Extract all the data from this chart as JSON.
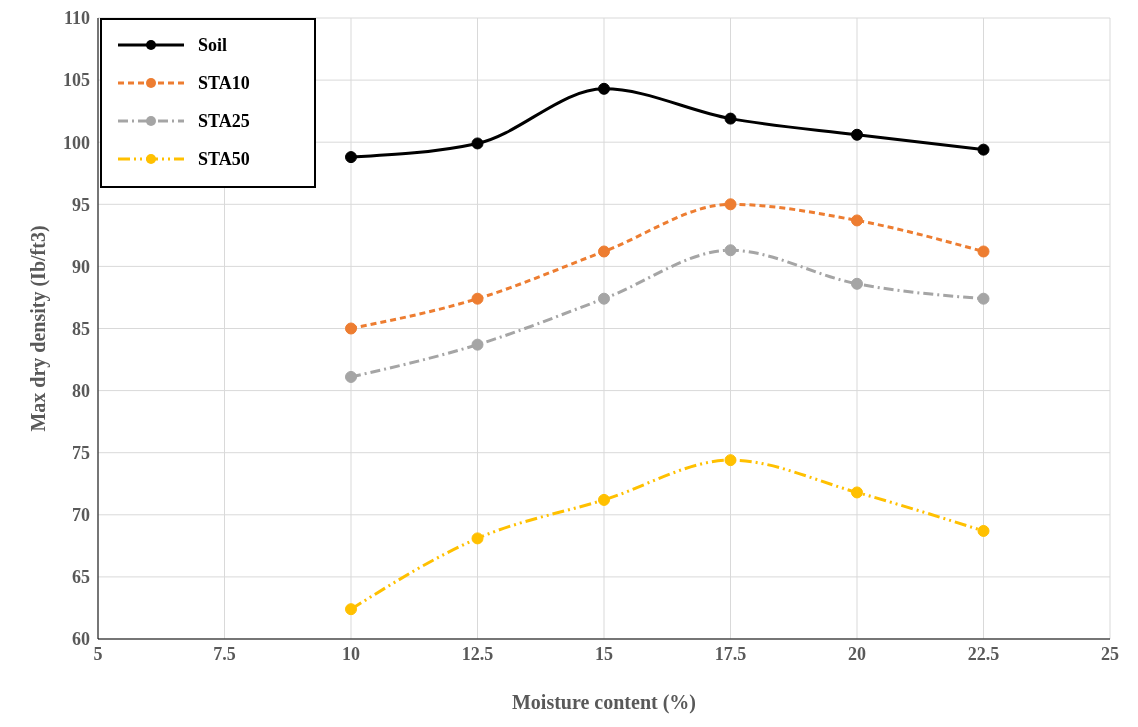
{
  "chart_data": {
    "type": "line",
    "xlabel": "Moisture content (%)",
    "ylabel": "Max dry density  (Ib/ft3)",
    "x": [
      10,
      12.5,
      15,
      17.5,
      20,
      22.5
    ],
    "xlim": [
      5,
      25
    ],
    "xticks": [
      5,
      7.5,
      10,
      12.5,
      15,
      17.5,
      20,
      22.5,
      25
    ],
    "ylim": [
      60,
      110
    ],
    "yticks": [
      60,
      65,
      70,
      75,
      80,
      85,
      90,
      95,
      100,
      105,
      110
    ],
    "grid": true,
    "legend": "top left",
    "marker": "circle",
    "series": [
      {
        "name": "Soil",
        "color": "#000000",
        "line_style": "solid",
        "values": [
          98.8,
          99.9,
          104.3,
          101.9,
          100.6,
          99.4
        ]
      },
      {
        "name": "STA10",
        "color": "#ed7d31",
        "line_style": "dashed",
        "values": [
          85.0,
          87.4,
          91.2,
          95.0,
          93.7,
          91.2
        ]
      },
      {
        "name": "STA25",
        "color": "#a5a5a5",
        "line_style": "dashed",
        "values": [
          81.1,
          83.7,
          87.4,
          91.3,
          88.6,
          87.4
        ]
      },
      {
        "name": "STA50",
        "color": "#ffc000",
        "line_style": "dashed",
        "values": [
          62.4,
          68.1,
          71.2,
          74.4,
          71.8,
          68.7
        ]
      }
    ]
  }
}
